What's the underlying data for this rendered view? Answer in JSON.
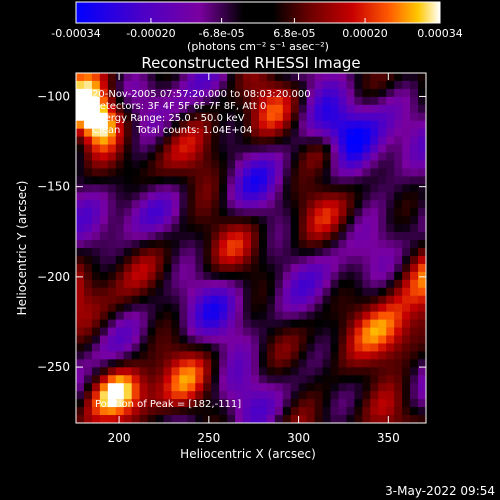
{
  "colorbar": {
    "tick_labels": [
      "-0.00034",
      "-0.00020",
      "-6.8e-05",
      "6.8e-05",
      "0.00020",
      "0.00034"
    ],
    "tick_values": [
      -0.00034,
      -0.0002,
      -6.8e-05,
      6.8e-05,
      0.0002,
      0.00034
    ],
    "range": [
      -0.00034,
      0.00034
    ],
    "units": "(photons cm⁻² s⁻¹ asec⁻²)",
    "colors": [
      "#0000ff",
      "#4b00c8",
      "#7a00a0",
      "#000000",
      "#6a0000",
      "#c80000",
      "#ff5a00",
      "#ffc800",
      "#ffffff"
    ]
  },
  "chart_data": {
    "type": "heatmap",
    "title": "Reconstructed RHESSI Image",
    "xlabel": "Heliocentric X (arcsec)",
    "ylabel": "Heliocentric Y (arcsec)",
    "xlim": [
      176,
      371
    ],
    "ylim": [
      -281,
      -87
    ],
    "x_ticks": [
      200,
      250,
      300,
      350
    ],
    "y_ticks": [
      -100,
      -150,
      -200,
      -250
    ],
    "x_tick_labels": [
      "200",
      "250",
      "300",
      "350"
    ],
    "y_tick_labels": [
      "−100",
      "−150",
      "−200",
      "−250"
    ],
    "annotations": [
      "20-Nov-2005 07:57:20.000 to 08:03:20.000",
      "Detectors: 3F 4F 5F 6F 7F 8F, Att 0",
      "Energy Range: 25.0 - 50.0 keV",
      "Clean     Total counts: 1.04E+04"
    ],
    "peak_label": "Position of Peak = [182,-111]",
    "peak_position": [
      182,
      -111
    ],
    "grid": false
  },
  "footer": {
    "timestamp": "3-May-2022 09:54"
  }
}
